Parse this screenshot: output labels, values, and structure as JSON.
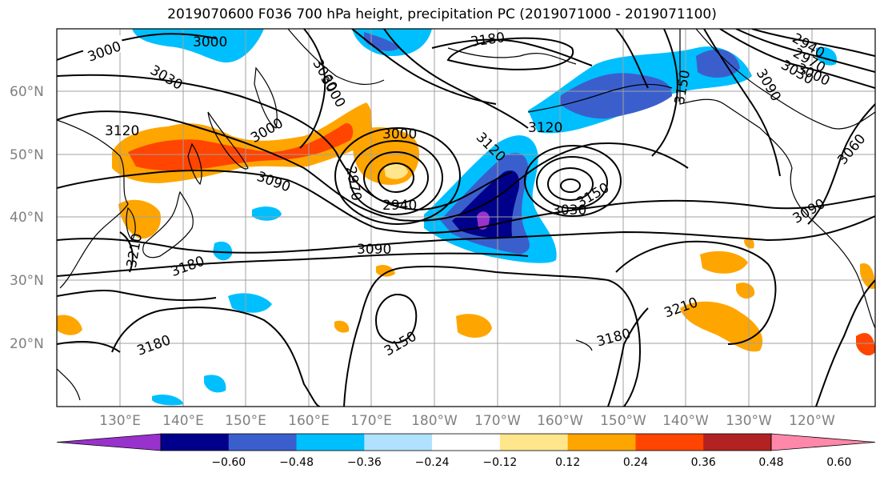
{
  "title": "2019070600 F036 700 hPa height, precipitation PC (2019071000 - 2019071100)",
  "map": {
    "lat_ticks": [
      "60°N",
      "50°N",
      "40°N",
      "30°N",
      "20°N"
    ],
    "lon_ticks": [
      "130°E",
      "140°E",
      "150°E",
      "160°E",
      "170°E",
      "180°W",
      "170°W",
      "160°W",
      "150°W",
      "140°W",
      "130°W",
      "120°W"
    ],
    "contour_labels": [
      "3000",
      "3000",
      "3180",
      "2940",
      "2970",
      "3030",
      "3000",
      "3060",
      "3000",
      "3150",
      "3090",
      "3120",
      "3000",
      "3030",
      "3120",
      "3060",
      "2970",
      "3090",
      "2940",
      "3000",
      "3030",
      "3120",
      "3150",
      "3090",
      "3090",
      "3210",
      "3180",
      "3210",
      "3180",
      "3150",
      "3180"
    ],
    "gridline_color": "#a0a0a0",
    "contour_color": "#000000"
  },
  "colorbar": {
    "labels": [
      "−0.60",
      "−0.48",
      "−0.36",
      "−0.24",
      "−0.12",
      "0.12",
      "0.24",
      "0.36",
      "0.48",
      "0.60"
    ],
    "colors": [
      "#9932cc",
      "#00008b",
      "#3a5fcd",
      "#00bfff",
      "#b0e2ff",
      "#ffffff",
      "#ffe68c",
      "#ffa500",
      "#ff4500",
      "#b22222",
      "#ff88aa"
    ]
  }
}
